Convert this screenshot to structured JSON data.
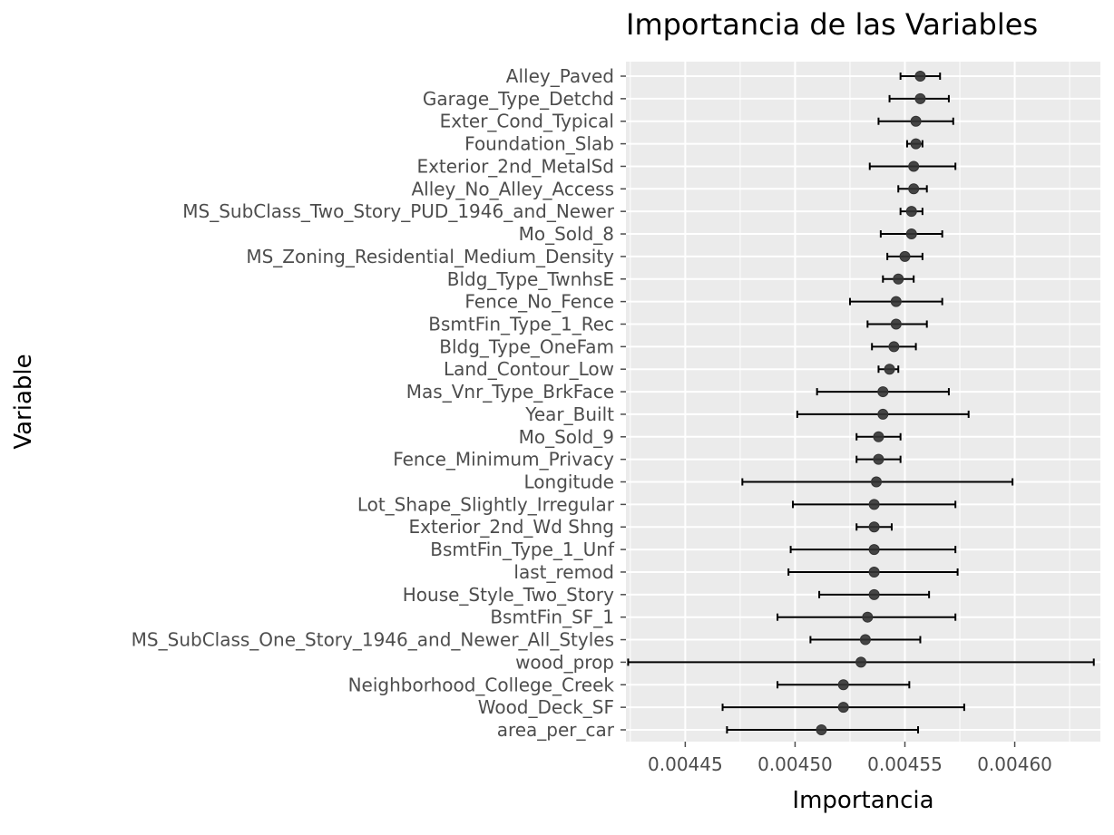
{
  "colors": {
    "panel_background": "#ebebeb",
    "grid_major": "#ffffff",
    "point_fill": "#333333",
    "errorbar": "#000000",
    "tick_label": "#4d4d4d",
    "text": "#000000"
  },
  "chart_data": {
    "type": "scatter",
    "title": "Importancia de las Variables",
    "xlabel": "Importancia",
    "ylabel": "Variable",
    "xlim": [
      0.004423,
      0.004639
    ],
    "xticks": [
      0.00445,
      0.0045,
      0.00455,
      0.0046
    ],
    "xtick_labels": [
      "0.00445",
      "0.00450",
      "0.00455",
      "0.00460"
    ],
    "grid": true,
    "legend": "none",
    "error_bars": true,
    "points": [
      {
        "variable": "Alley_Paved",
        "importance": 0.004557,
        "lower": 0.004548,
        "upper": 0.004566
      },
      {
        "variable": "Garage_Type_Detchd",
        "importance": 0.004557,
        "lower": 0.004543,
        "upper": 0.00457
      },
      {
        "variable": "Exter_Cond_Typical",
        "importance": 0.004555,
        "lower": 0.004538,
        "upper": 0.004572
      },
      {
        "variable": "Foundation_Slab",
        "importance": 0.004555,
        "lower": 0.004551,
        "upper": 0.004558
      },
      {
        "variable": "Exterior_2nd_MetalSd",
        "importance": 0.004554,
        "lower": 0.004534,
        "upper": 0.004573
      },
      {
        "variable": "Alley_No_Alley_Access",
        "importance": 0.004554,
        "lower": 0.004547,
        "upper": 0.00456
      },
      {
        "variable": "MS_SubClass_Two_Story_PUD_1946_and_Newer",
        "importance": 0.004553,
        "lower": 0.004548,
        "upper": 0.004558
      },
      {
        "variable": "Mo_Sold_8",
        "importance": 0.004553,
        "lower": 0.004539,
        "upper": 0.004567
      },
      {
        "variable": "MS_Zoning_Residential_Medium_Density",
        "importance": 0.00455,
        "lower": 0.004542,
        "upper": 0.004558
      },
      {
        "variable": "Bldg_Type_TwnhsE",
        "importance": 0.004547,
        "lower": 0.00454,
        "upper": 0.004554
      },
      {
        "variable": "Fence_No_Fence",
        "importance": 0.004546,
        "lower": 0.004525,
        "upper": 0.004567
      },
      {
        "variable": "BsmtFin_Type_1_Rec",
        "importance": 0.004546,
        "lower": 0.004533,
        "upper": 0.00456
      },
      {
        "variable": "Bldg_Type_OneFam",
        "importance": 0.004545,
        "lower": 0.004535,
        "upper": 0.004555
      },
      {
        "variable": "Land_Contour_Low",
        "importance": 0.004543,
        "lower": 0.004538,
        "upper": 0.004547
      },
      {
        "variable": "Mas_Vnr_Type_BrkFace",
        "importance": 0.00454,
        "lower": 0.00451,
        "upper": 0.00457
      },
      {
        "variable": "Year_Built",
        "importance": 0.00454,
        "lower": 0.004501,
        "upper": 0.004579
      },
      {
        "variable": "Mo_Sold_9",
        "importance": 0.004538,
        "lower": 0.004528,
        "upper": 0.004548
      },
      {
        "variable": "Fence_Minimum_Privacy",
        "importance": 0.004538,
        "lower": 0.004528,
        "upper": 0.004548
      },
      {
        "variable": "Longitude",
        "importance": 0.004537,
        "lower": 0.004476,
        "upper": 0.004599
      },
      {
        "variable": "Lot_Shape_Slightly_Irregular",
        "importance": 0.004536,
        "lower": 0.004499,
        "upper": 0.004573
      },
      {
        "variable": "Exterior_2nd_Wd Shng",
        "importance": 0.004536,
        "lower": 0.004528,
        "upper": 0.004544
      },
      {
        "variable": "BsmtFin_Type_1_Unf",
        "importance": 0.004536,
        "lower": 0.004498,
        "upper": 0.004573
      },
      {
        "variable": "last_remod",
        "importance": 0.004536,
        "lower": 0.004497,
        "upper": 0.004574
      },
      {
        "variable": "House_Style_Two_Story",
        "importance": 0.004536,
        "lower": 0.004511,
        "upper": 0.004561
      },
      {
        "variable": "BsmtFin_SF_1",
        "importance": 0.004533,
        "lower": 0.004492,
        "upper": 0.004573
      },
      {
        "variable": "MS_SubClass_One_Story_1946_and_Newer_All_Styles",
        "importance": 0.004532,
        "lower": 0.004507,
        "upper": 0.004557
      },
      {
        "variable": "wood_prop",
        "importance": 0.00453,
        "lower": 0.004424,
        "upper": 0.004636
      },
      {
        "variable": "Neighborhood_College_Creek",
        "importance": 0.004522,
        "lower": 0.004492,
        "upper": 0.004552
      },
      {
        "variable": "Wood_Deck_SF",
        "importance": 0.004522,
        "lower": 0.004467,
        "upper": 0.004577
      },
      {
        "variable": "area_per_car",
        "importance": 0.004512,
        "lower": 0.004469,
        "upper": 0.004556
      }
    ]
  }
}
